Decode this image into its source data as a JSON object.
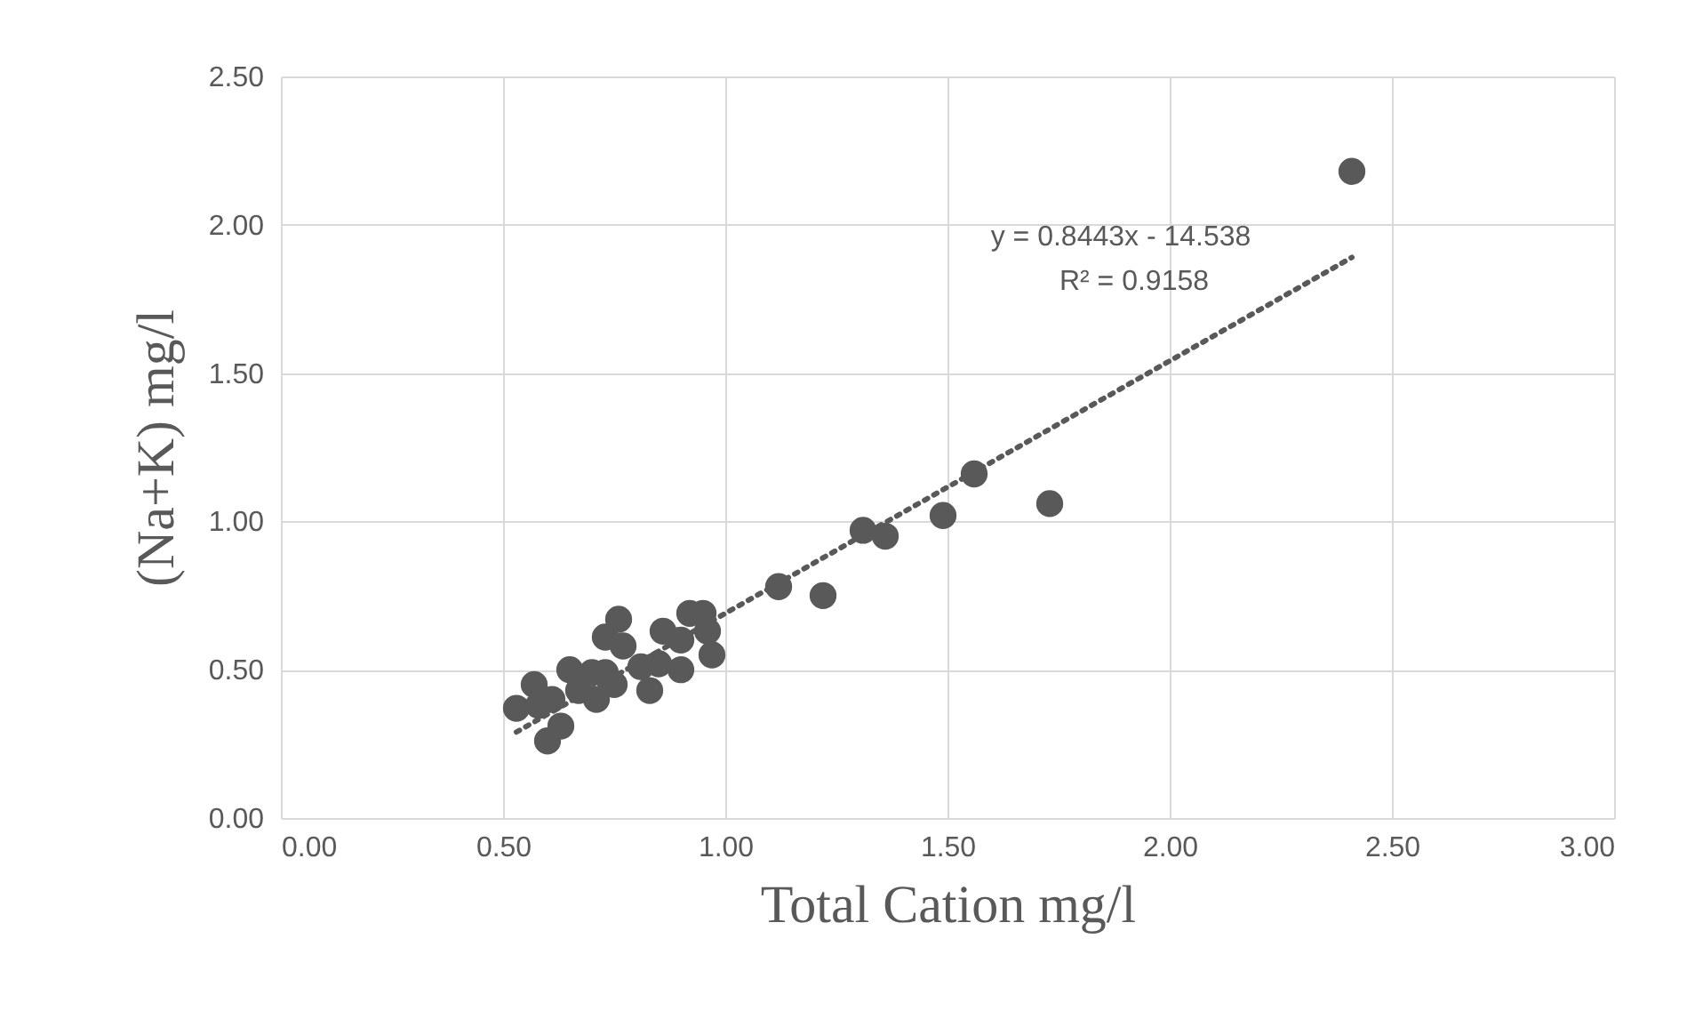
{
  "chart_data": {
    "type": "scatter",
    "xlabel": "Total Cation mg/l",
    "ylabel": "(Na+K) mg/l",
    "annotations": [
      "y = 0.8443x - 14.538",
      "R² = 0.9158"
    ],
    "xlim": [
      0,
      3
    ],
    "xticks": [
      {
        "value": 0,
        "label": "0.00"
      },
      {
        "value": 0.5,
        "label": "0.50"
      },
      {
        "value": 1,
        "label": "1.00"
      },
      {
        "value": 1.5,
        "label": "1.50"
      },
      {
        "value": 2,
        "label": "2.00"
      },
      {
        "value": 2.5,
        "label": "2.50"
      },
      {
        "value": 3,
        "label": "3.00"
      }
    ],
    "ylim": [
      0,
      2.5
    ],
    "yticks": [
      {
        "value": 0,
        "label": "0.00"
      },
      {
        "value": 0.5,
        "label": "0.50"
      },
      {
        "value": 1,
        "label": "1.00"
      },
      {
        "value": 1.5,
        "label": "1.50"
      },
      {
        "value": 2,
        "label": "2.00"
      },
      {
        "value": 2.5,
        "label": "2.50"
      }
    ],
    "grid": true,
    "series": [
      {
        "color": "#595959",
        "marker": "circle",
        "x": [
          0.53,
          0.57,
          0.58,
          0.6,
          0.61,
          0.63,
          0.65,
          0.67,
          0.7,
          0.71,
          0.73,
          0.73,
          0.75,
          0.76,
          0.77,
          0.81,
          0.83,
          0.85,
          0.86,
          0.9,
          0.9,
          0.92,
          0.95,
          0.96,
          0.97,
          1.12,
          1.22,
          1.31,
          1.36,
          1.49,
          1.56,
          1.73,
          2.41
        ],
        "values": [
          0.37,
          0.45,
          0.38,
          0.26,
          0.4,
          0.31,
          0.5,
          0.43,
          0.49,
          0.4,
          0.61,
          0.49,
          0.45,
          0.67,
          0.58,
          0.51,
          0.43,
          0.52,
          0.63,
          0.5,
          0.6,
          0.69,
          0.69,
          0.63,
          0.55,
          0.78,
          0.75,
          0.97,
          0.95,
          1.02,
          1.16,
          1.06,
          2.18
        ]
      },
      {
        "type": "line",
        "color": "#595959",
        "line_style": "dotted",
        "marker": "none",
        "x": [
          0.53,
          2.41
        ],
        "values": [
          0.29,
          1.89
        ]
      }
    ]
  }
}
